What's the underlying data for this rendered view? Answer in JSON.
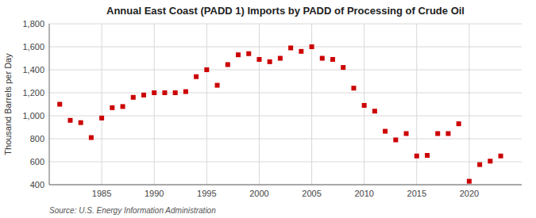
{
  "chart_data": {
    "type": "scatter",
    "title": "Annual East Coast (PADD 1) Imports by PADD of Processing of Crude Oil",
    "ylabel": "Thousand Barrels per Day",
    "source": "Source: U.S. Energy Information Administration",
    "color": "#cc0000",
    "marker": "square",
    "grid": true,
    "xlim": [
      1980,
      2025
    ],
    "xticks": [
      1985,
      1990,
      1995,
      2000,
      2005,
      2010,
      2015,
      2020
    ],
    "ylim": [
      400,
      1800
    ],
    "yticks": [
      400,
      600,
      800,
      {
        "value": 1000,
        "label": "1,000"
      },
      {
        "value": 1200,
        "label": "1,200"
      },
      {
        "value": 1400,
        "label": "1,400"
      },
      {
        "value": 1600,
        "label": "1,600"
      },
      {
        "value": 1800,
        "label": "1,800"
      }
    ],
    "x": [
      1981,
      1982,
      1983,
      1984,
      1985,
      1986,
      1987,
      1988,
      1989,
      1990,
      1991,
      1992,
      1993,
      1994,
      1995,
      1996,
      1997,
      1998,
      1999,
      2000,
      2001,
      2002,
      2003,
      2004,
      2005,
      2006,
      2007,
      2008,
      2009,
      2010,
      2011,
      2012,
      2013,
      2014,
      2015,
      2016,
      2017,
      2018,
      2019,
      2020,
      2021,
      2022,
      2023
    ],
    "values": [
      1100,
      960,
      940,
      810,
      980,
      1070,
      1080,
      1160,
      1180,
      1200,
      1200,
      1200,
      1210,
      1340,
      1400,
      1265,
      1445,
      1530,
      1540,
      1490,
      1470,
      1500,
      1590,
      1560,
      1600,
      1500,
      1490,
      1420,
      1240,
      1090,
      1040,
      865,
      790,
      845,
      650,
      655,
      845,
      845,
      930,
      430,
      575,
      605,
      650
    ]
  }
}
